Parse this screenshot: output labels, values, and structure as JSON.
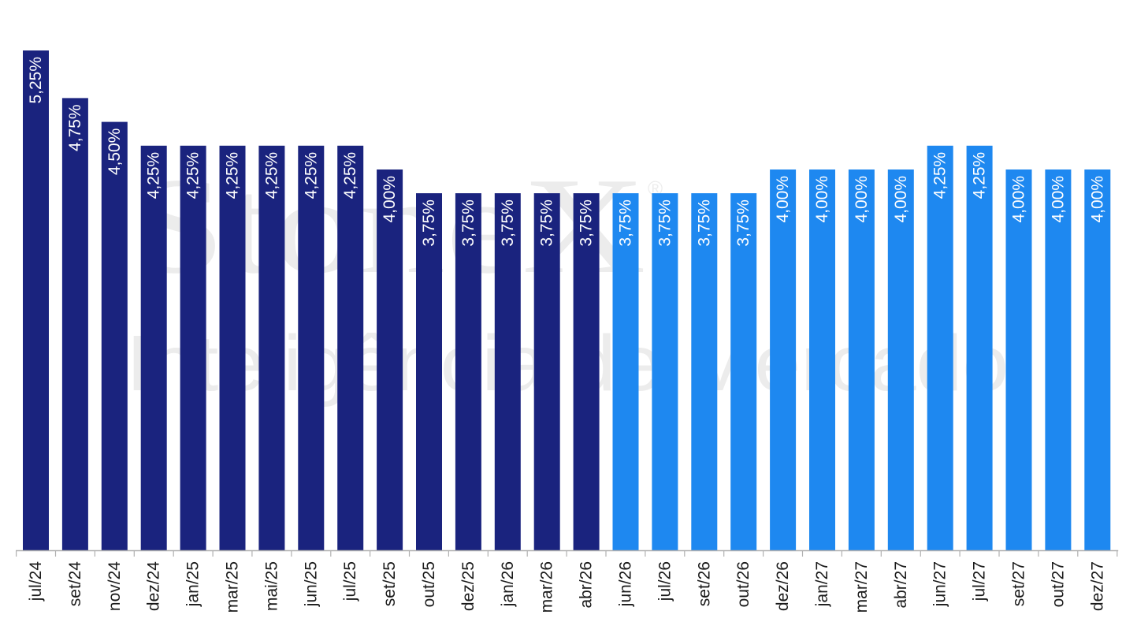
{
  "watermark": {
    "brand": "StoneX",
    "registered": "®",
    "subtitle": "Inteligência de Mercado"
  },
  "colors": {
    "actual": "#1a237e",
    "forecast": "#1e88f0",
    "axis": "#b0b0b0",
    "watermark": "#ececec"
  },
  "chart_data": {
    "type": "bar",
    "categories": [
      "jul/24",
      "set/24",
      "nov/24",
      "dez/24",
      "jan/25",
      "mar/25",
      "mai/25",
      "jun/25",
      "jul/25",
      "set/25",
      "out/25",
      "dez/25",
      "jan/26",
      "mar/26",
      "abr/26",
      "jun/26",
      "jul/26",
      "set/26",
      "out/26",
      "dez/26",
      "jan/27",
      "mar/27",
      "abr/27",
      "jun/27",
      "jul/27",
      "set/27",
      "out/27",
      "dez/27"
    ],
    "values": [
      5.25,
      4.75,
      4.5,
      4.25,
      4.25,
      4.25,
      4.25,
      4.25,
      4.25,
      4.0,
      3.75,
      3.75,
      3.75,
      3.75,
      3.75,
      3.75,
      3.75,
      3.75,
      3.75,
      4.0,
      4.0,
      4.0,
      4.0,
      4.25,
      4.25,
      4.0,
      4.0,
      4.0
    ],
    "labels": [
      "5,25%",
      "4,75%",
      "4,50%",
      "4,25%",
      "4,25%",
      "4,25%",
      "4,25%",
      "4,25%",
      "4,25%",
      "4,00%",
      "3,75%",
      "3,75%",
      "3,75%",
      "3,75%",
      "3,75%",
      "3,75%",
      "3,75%",
      "3,75%",
      "3,75%",
      "4,00%",
      "4,00%",
      "4,00%",
      "4,00%",
      "4,25%",
      "4,25%",
      "4,00%",
      "4,00%",
      "4,00%"
    ],
    "forecast_start_index": 15,
    "title": "",
    "xlabel": "",
    "ylabel": "",
    "ylim": [
      0,
      5.25
    ],
    "grid": false,
    "legend": "none"
  }
}
